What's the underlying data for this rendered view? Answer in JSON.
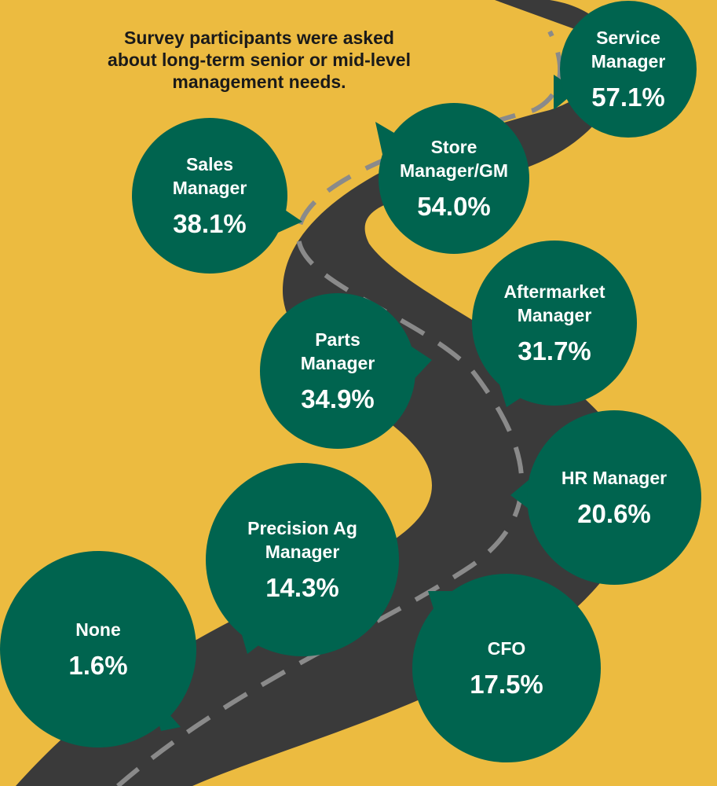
{
  "caption_lines": [
    "Survey participants were asked",
    "about long-term senior or mid-level",
    "management needs."
  ],
  "colors": {
    "background": "#ecbb40",
    "road": "#3a3a3a",
    "road_dash": "#8a8a8a",
    "bubble": "#00644f"
  },
  "chart_data": {
    "type": "bar",
    "title": "",
    "unit": "%",
    "categories": [
      "Service Manager",
      "Store Manager/GM",
      "Sales Manager",
      "Parts Manager",
      "Aftermarket Manager",
      "HR Manager",
      "CFO",
      "Precision Ag Manager",
      "None"
    ],
    "values": [
      57.1,
      54.0,
      38.1,
      34.9,
      31.7,
      20.6,
      17.5,
      14.3,
      1.6
    ],
    "labels": [
      "57.1%",
      "54.0%",
      "38.1%",
      "34.9%",
      "31.7%",
      "20.6%",
      "17.5%",
      "14.3%",
      "1.6%"
    ]
  }
}
